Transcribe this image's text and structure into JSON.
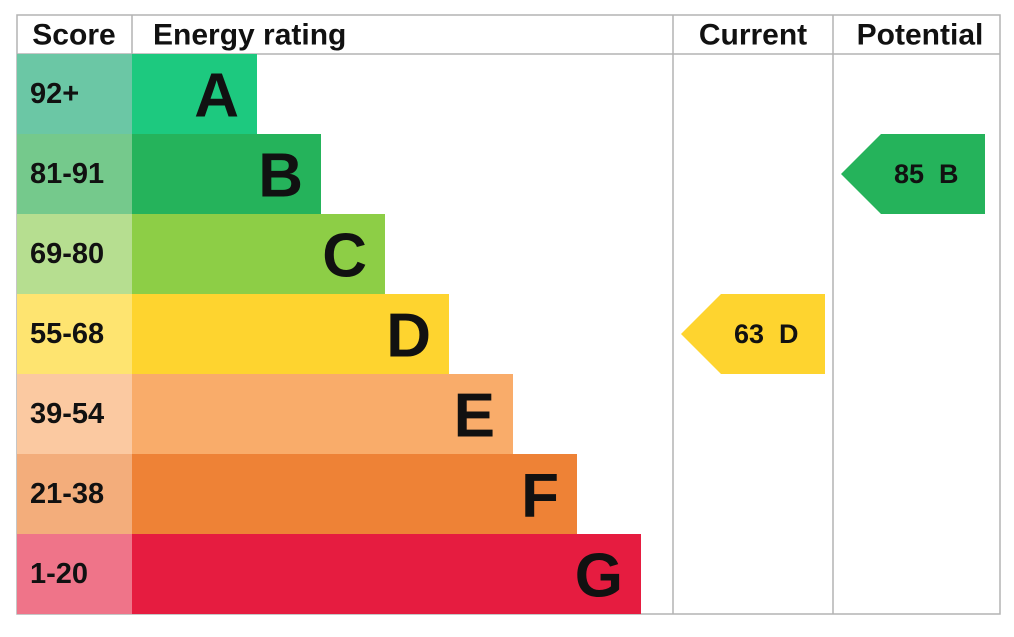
{
  "headers": {
    "score": "Score",
    "rating": "Energy rating",
    "current": "Current",
    "potential": "Potential"
  },
  "bands": [
    {
      "score": "92+",
      "letter": "A",
      "color": "#1dc97f",
      "score_color": "#6bc7a5"
    },
    {
      "score": "81-91",
      "letter": "B",
      "color": "#25b35b",
      "score_color": "#75c98c"
    },
    {
      "score": "69-80",
      "letter": "C",
      "color": "#8dce46",
      "score_color": "#b6de90"
    },
    {
      "score": "55-68",
      "letter": "D",
      "color": "#fed42f",
      "score_color": "#fee470"
    },
    {
      "score": "39-54",
      "letter": "E",
      "color": "#f9ac6a",
      "score_color": "#fbc9a1"
    },
    {
      "score": "21-38",
      "letter": "F",
      "color": "#ee8236",
      "score_color": "#f3ad7b"
    },
    {
      "score": "1-20",
      "letter": "G",
      "color": "#e61c40",
      "score_color": "#ef7489"
    }
  ],
  "current": {
    "value": 63,
    "letter": "D"
  },
  "potential": {
    "value": 85,
    "letter": "B"
  }
}
